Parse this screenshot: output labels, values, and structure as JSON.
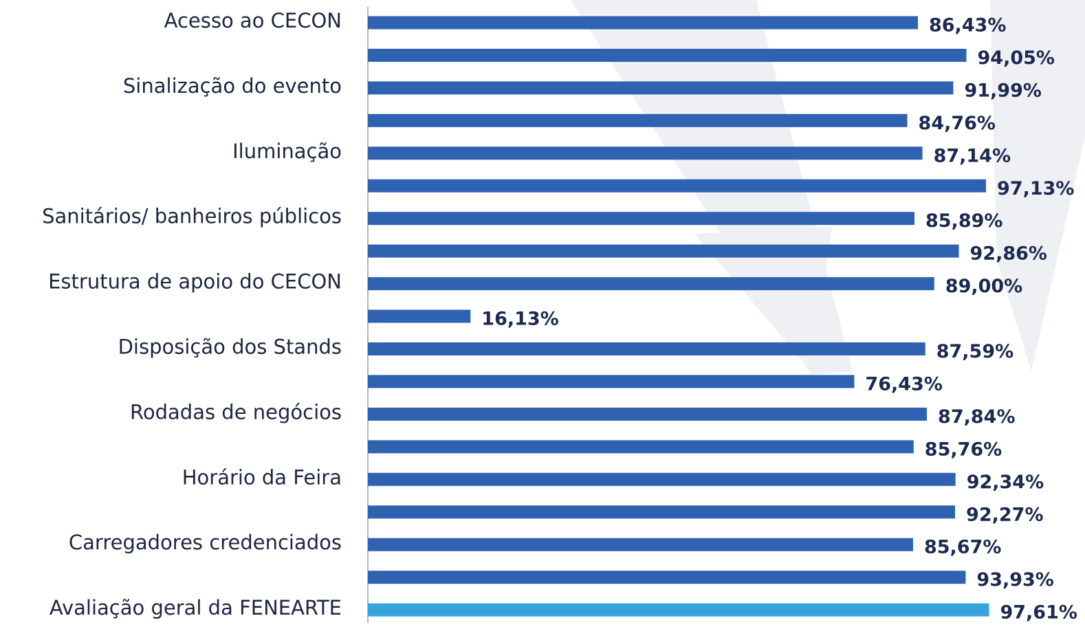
{
  "chart_data": {
    "type": "barh",
    "categories": [
      "Acesso ao CECON",
      null,
      "Sinalização do evento",
      null,
      "Iluminação",
      null,
      "Sanitários/ banheiros públicos",
      null,
      "Estrutura de apoio do CECON",
      null,
      "Disposição dos Stands",
      null,
      "Rodadas de negócios",
      null,
      "Horário da Feira",
      null,
      "Carregadores credenciados",
      null,
      "Avaliação geral da FENEARTE"
    ],
    "values": [
      86.43,
      94.05,
      91.99,
      84.76,
      87.14,
      97.13,
      85.89,
      92.86,
      89.0,
      16.13,
      87.59,
      76.43,
      87.84,
      85.76,
      92.34,
      92.27,
      85.67,
      93.93,
      97.61
    ],
    "value_labels": [
      "86,43%",
      "94,05%",
      "91,99%",
      "84,76%",
      "87,14%",
      "97,13%",
      "85,89%",
      "92,86%",
      "89,00%",
      "16,13%",
      "87,59%",
      "76,43%",
      "87,84%",
      "85,76%",
      "92,34%",
      "92,27%",
      "85,67%",
      "93,93%",
      "97,61%"
    ],
    "colors": [
      "#2f62b1",
      "#2f62b1",
      "#2f62b1",
      "#2f62b1",
      "#2f62b1",
      "#2f62b1",
      "#2f62b1",
      "#2f62b1",
      "#2f62b1",
      "#2f62b1",
      "#2f62b1",
      "#2f62b1",
      "#2f62b1",
      "#2f62b1",
      "#2f62b1",
      "#2f62b1",
      "#2f62b1",
      "#2f62b1",
      "#35a4de"
    ],
    "xlim": [
      0,
      100
    ]
  }
}
